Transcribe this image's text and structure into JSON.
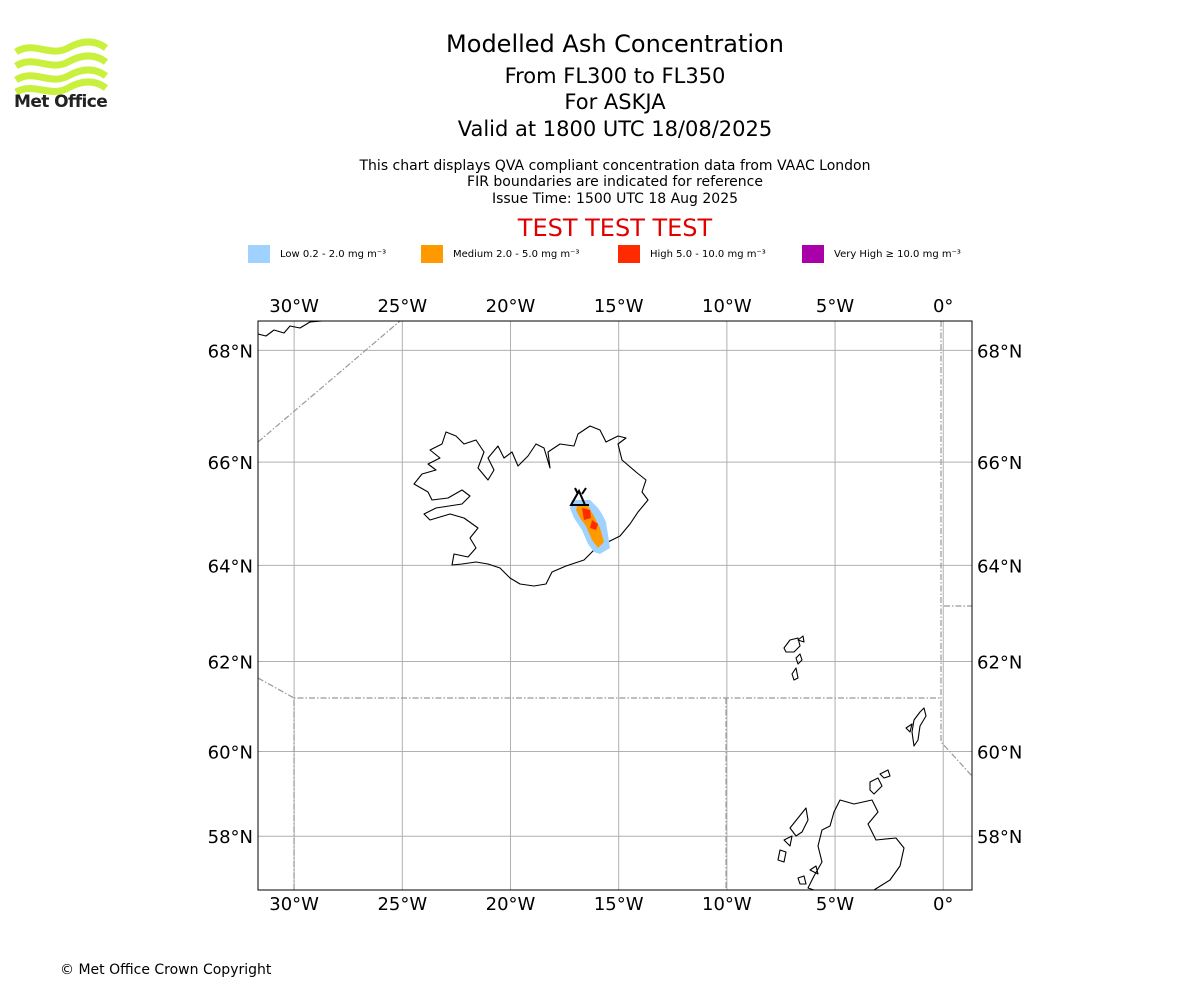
{
  "branding": {
    "logo_text": "Met Office",
    "logo_color": "#c8f03c"
  },
  "header": {
    "title": "Modelled Ash Concentration",
    "flight_levels": "From FL300 to FL350",
    "volcano": "For ASKJA",
    "valid_time": "Valid at 1800 UTC 18/08/2025",
    "notes": [
      "This chart displays QVA compliant concentration data from VAAC London",
      "FIR boundaries are indicated for reference",
      "Issue Time: 1500 UTC 18 Aug 2025"
    ],
    "test_banner": "TEST TEST TEST",
    "test_banner_color": "#e00000"
  },
  "legend": [
    {
      "label": "Low 0.2 - 2.0 mg m⁻³",
      "color": "#a0d2ff"
    },
    {
      "label": "Medium 2.0 - 5.0 mg m⁻³",
      "color": "#ff9900"
    },
    {
      "label": "High 5.0 - 10.0 mg m⁻³",
      "color": "#ff2a00"
    },
    {
      "label": "Very High ≥ 10.0 mg m⁻³",
      "color": "#aa00aa"
    }
  ],
  "map": {
    "lon_range": [
      -31.67,
      1.33
    ],
    "lat_range": [
      56.67,
      68.5
    ],
    "lon_ticks": [
      {
        "value": -30,
        "label": "30°W"
      },
      {
        "value": -25,
        "label": "25°W"
      },
      {
        "value": -20,
        "label": "20°W"
      },
      {
        "value": -15,
        "label": "15°W"
      },
      {
        "value": -10,
        "label": "10°W"
      },
      {
        "value": -5,
        "label": "5°W"
      },
      {
        "value": 0,
        "label": "0°"
      }
    ],
    "lat_ticks": [
      {
        "value": 68,
        "label": "68°N"
      },
      {
        "value": 66,
        "label": "66°N"
      },
      {
        "value": 64,
        "label": "64°N"
      },
      {
        "value": 62,
        "label": "62°N"
      },
      {
        "value": 60,
        "label": "60°N"
      },
      {
        "value": 58,
        "label": "58°N"
      }
    ],
    "gridlines": true,
    "volcano_location": {
      "lon": -16.75,
      "lat": 65.03
    }
  },
  "footer": {
    "copyright": "© Met Office Crown Copyright"
  }
}
